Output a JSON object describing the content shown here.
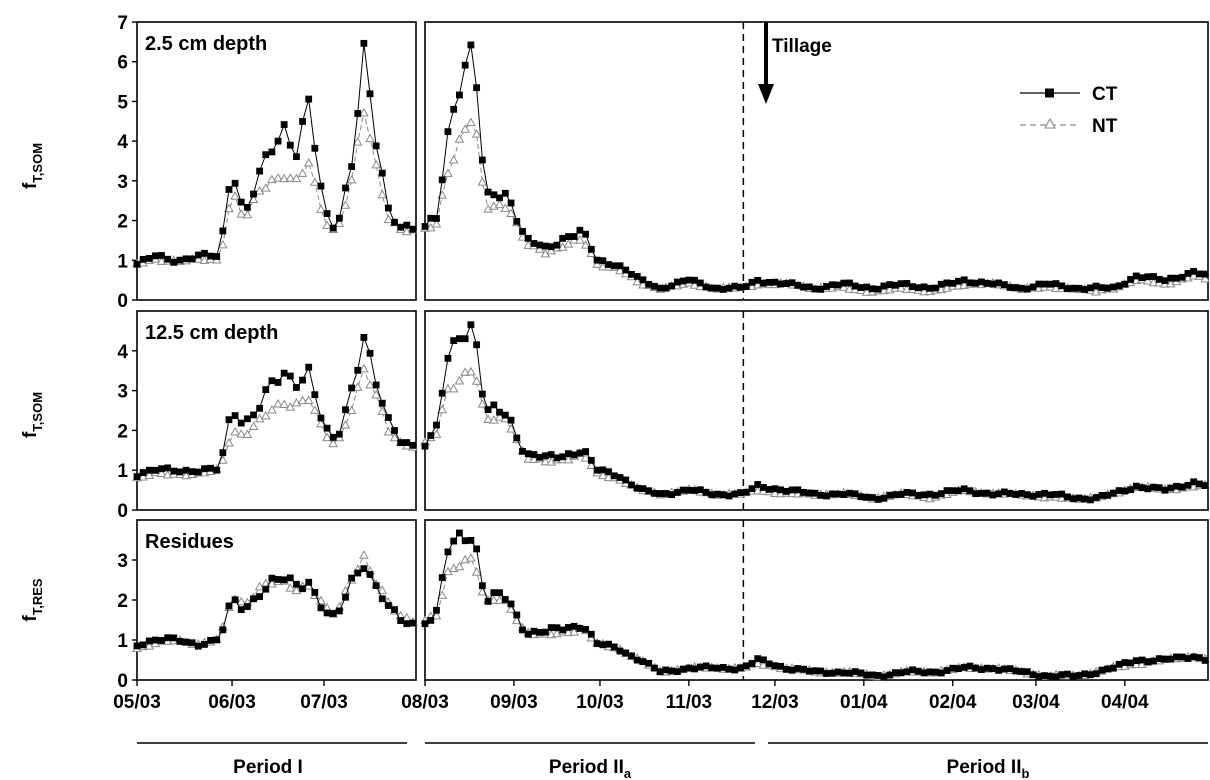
{
  "figure": {
    "ylabels": [
      {
        "main": "f",
        "sub": "T,SOM"
      },
      {
        "main": "f",
        "sub": "T,SOM"
      },
      {
        "main": "f",
        "sub": "T,RES"
      }
    ],
    "x_ticks": [
      "05/03",
      "06/03",
      "07/03",
      "08/03",
      "09/03",
      "10/03",
      "11/03",
      "12/03",
      "01/04",
      "02/04",
      "03/04",
      "04/04"
    ],
    "periods": [
      {
        "main": "Period I",
        "sub": ""
      },
      {
        "main": "Period II",
        "sub": "a"
      },
      {
        "main": "Period II",
        "sub": "b"
      }
    ],
    "tillage_label": "Tillage",
    "tillage_date": "2003-11-20",
    "legend": [
      {
        "name": "CT",
        "marker": "square-filled",
        "line": "solid",
        "color": "#000000"
      },
      {
        "name": "NT",
        "marker": "triangle-open",
        "line": "dashed",
        "color": "#8a8a8a"
      }
    ]
  },
  "chart_data": [
    {
      "type": "line",
      "title": "2.5 cm depth",
      "ylim": [
        0,
        7
      ],
      "yticks": [
        0,
        1,
        2,
        3,
        4,
        5,
        6,
        7
      ],
      "xlim": [
        "2003-05-01",
        "2004-04-30"
      ],
      "x_keypoints": [
        "2003-05-01",
        "2003-05-07",
        "2003-05-14",
        "2003-05-21",
        "2003-05-28",
        "2003-06-01",
        "2003-06-05",
        "2003-06-10",
        "2003-06-14",
        "2003-06-18",
        "2003-06-22",
        "2003-06-26",
        "2003-07-01",
        "2003-07-05",
        "2003-07-10",
        "2003-07-14",
        "2003-07-18",
        "2003-07-22",
        "2003-07-26",
        "2003-07-31",
        "2003-08-05",
        "2003-08-09",
        "2003-08-14",
        "2003-08-18",
        "2003-08-22",
        "2003-08-26",
        "2003-08-30",
        "2003-09-05",
        "2003-09-12",
        "2003-09-19",
        "2003-09-25",
        "2003-09-30",
        "2003-10-07",
        "2003-10-15",
        "2003-10-22",
        "2003-11-01",
        "2003-11-10",
        "2003-11-20",
        "2003-11-25",
        "2003-12-05",
        "2003-12-15",
        "2003-12-25",
        "2004-01-05",
        "2004-01-15",
        "2004-01-25",
        "2004-02-05",
        "2004-02-15",
        "2004-02-25",
        "2004-03-05",
        "2004-03-15",
        "2004-03-22",
        "2004-03-28",
        "2004-04-05",
        "2004-04-15",
        "2004-04-25",
        "2004-04-30"
      ],
      "series": [
        {
          "name": "CT",
          "values": [
            0.9,
            1.1,
            1.0,
            1.1,
            1.1,
            3.5,
            2.1,
            3.1,
            3.8,
            4.4,
            3.8,
            4.9,
            2.2,
            1.8,
            3.5,
            6.1,
            3.9,
            2.3,
            1.9,
            1.8,
            2.0,
            4.2,
            5.9,
            6.3,
            2.5,
            2.7,
            2.7,
            1.5,
            1.3,
            1.6,
            1.7,
            1.0,
            0.9,
            0.5,
            0.3,
            0.5,
            0.3,
            0.3,
            0.5,
            0.4,
            0.3,
            0.4,
            0.3,
            0.4,
            0.3,
            0.5,
            0.4,
            0.3,
            0.4,
            0.3,
            0.3,
            0.3,
            0.6,
            0.5,
            0.7,
            0.6
          ]
        },
        {
          "name": "NT",
          "values": [
            0.9,
            1.0,
            1.0,
            1.0,
            1.0,
            2.8,
            2.0,
            2.7,
            3.0,
            3.2,
            3.0,
            3.4,
            2.0,
            1.7,
            3.0,
            4.7,
            3.3,
            2.1,
            1.8,
            1.7,
            1.9,
            3.3,
            4.2,
            4.6,
            2.3,
            2.4,
            2.4,
            1.4,
            1.2,
            1.4,
            1.5,
            0.9,
            0.8,
            0.4,
            0.3,
            0.4,
            0.3,
            0.3,
            0.4,
            0.4,
            0.3,
            0.3,
            0.2,
            0.3,
            0.2,
            0.4,
            0.4,
            0.3,
            0.3,
            0.3,
            0.2,
            0.3,
            0.5,
            0.4,
            0.6,
            0.5
          ]
        }
      ]
    },
    {
      "type": "line",
      "title": "12.5 cm depth",
      "ylim": [
        0,
        5
      ],
      "yticks": [
        0,
        1,
        2,
        3,
        4
      ],
      "xlim": [
        "2003-05-01",
        "2004-04-30"
      ],
      "x_keypoints": [
        "2003-05-01",
        "2003-05-07",
        "2003-05-14",
        "2003-05-21",
        "2003-05-28",
        "2003-06-01",
        "2003-06-05",
        "2003-06-10",
        "2003-06-14",
        "2003-06-18",
        "2003-06-22",
        "2003-06-26",
        "2003-07-01",
        "2003-07-05",
        "2003-07-10",
        "2003-07-14",
        "2003-07-18",
        "2003-07-22",
        "2003-07-26",
        "2003-07-31",
        "2003-08-05",
        "2003-08-09",
        "2003-08-14",
        "2003-08-18",
        "2003-08-22",
        "2003-08-26",
        "2003-08-30",
        "2003-09-05",
        "2003-09-12",
        "2003-09-19",
        "2003-09-25",
        "2003-09-30",
        "2003-10-07",
        "2003-10-15",
        "2003-10-22",
        "2003-11-01",
        "2003-11-10",
        "2003-11-20",
        "2003-11-25",
        "2003-12-05",
        "2003-12-15",
        "2003-12-25",
        "2004-01-05",
        "2004-01-15",
        "2004-01-25",
        "2004-02-05",
        "2004-02-15",
        "2004-02-25",
        "2004-03-05",
        "2004-03-15",
        "2004-03-22",
        "2004-03-28",
        "2004-04-05",
        "2004-04-15",
        "2004-04-25",
        "2004-04-30"
      ],
      "series": [
        {
          "name": "CT",
          "values": [
            0.9,
            1.0,
            1.0,
            1.0,
            1.0,
            2.6,
            2.2,
            2.6,
            3.1,
            3.4,
            3.3,
            3.5,
            2.0,
            1.7,
            3.1,
            4.4,
            3.1,
            2.2,
            1.8,
            1.6,
            2.0,
            3.8,
            4.6,
            4.7,
            2.4,
            2.5,
            2.4,
            1.4,
            1.3,
            1.4,
            1.5,
            1.0,
            0.9,
            0.5,
            0.4,
            0.5,
            0.4,
            0.4,
            0.6,
            0.5,
            0.4,
            0.4,
            0.3,
            0.4,
            0.4,
            0.5,
            0.4,
            0.4,
            0.4,
            0.3,
            0.3,
            0.4,
            0.6,
            0.5,
            0.7,
            0.6
          ]
        },
        {
          "name": "NT",
          "values": [
            0.8,
            0.9,
            0.9,
            0.9,
            1.0,
            2.0,
            1.9,
            2.2,
            2.5,
            2.7,
            2.7,
            2.8,
            1.9,
            1.6,
            2.6,
            3.5,
            2.8,
            2.0,
            1.7,
            1.6,
            1.9,
            3.0,
            3.4,
            3.6,
            2.2,
            2.3,
            2.3,
            1.3,
            1.2,
            1.3,
            1.4,
            0.9,
            0.8,
            0.5,
            0.4,
            0.5,
            0.4,
            0.4,
            0.5,
            0.4,
            0.4,
            0.4,
            0.3,
            0.4,
            0.3,
            0.5,
            0.4,
            0.4,
            0.3,
            0.3,
            0.3,
            0.4,
            0.6,
            0.5,
            0.6,
            0.6
          ]
        }
      ]
    },
    {
      "type": "line",
      "title": "Residues",
      "ylim": [
        0,
        4
      ],
      "yticks": [
        0,
        1,
        2,
        3
      ],
      "xlim": [
        "2003-05-01",
        "2004-04-30"
      ],
      "x_keypoints": [
        "2003-05-01",
        "2003-05-07",
        "2003-05-14",
        "2003-05-21",
        "2003-05-28",
        "2003-06-01",
        "2003-06-05",
        "2003-06-10",
        "2003-06-14",
        "2003-06-18",
        "2003-06-22",
        "2003-06-26",
        "2003-07-01",
        "2003-07-05",
        "2003-07-10",
        "2003-07-14",
        "2003-07-18",
        "2003-07-22",
        "2003-07-26",
        "2003-07-31",
        "2003-08-05",
        "2003-08-09",
        "2003-08-14",
        "2003-08-18",
        "2003-08-22",
        "2003-08-26",
        "2003-08-30",
        "2003-09-05",
        "2003-09-12",
        "2003-09-19",
        "2003-09-25",
        "2003-09-30",
        "2003-10-07",
        "2003-10-15",
        "2003-10-22",
        "2003-11-01",
        "2003-11-10",
        "2003-11-20",
        "2003-11-25",
        "2003-12-05",
        "2003-12-15",
        "2003-12-25",
        "2004-01-05",
        "2004-01-15",
        "2004-01-25",
        "2004-02-05",
        "2004-02-15",
        "2004-02-25",
        "2004-03-05",
        "2004-03-15",
        "2004-03-22",
        "2004-03-28",
        "2004-04-05",
        "2004-04-15",
        "2004-04-25",
        "2004-04-30"
      ],
      "series": [
        {
          "name": "CT",
          "values": [
            0.9,
            1.0,
            1.0,
            0.9,
            1.0,
            2.0,
            1.8,
            2.2,
            2.4,
            2.5,
            2.4,
            2.5,
            1.7,
            1.5,
            2.5,
            3.0,
            2.3,
            1.8,
            1.5,
            1.4,
            1.7,
            3.2,
            3.6,
            3.7,
            2.0,
            2.1,
            2.0,
            1.2,
            1.2,
            1.3,
            1.4,
            0.9,
            0.8,
            0.5,
            0.2,
            0.3,
            0.3,
            0.3,
            0.5,
            0.3,
            0.2,
            0.2,
            0.1,
            0.2,
            0.2,
            0.3,
            0.3,
            0.2,
            0.1,
            0.1,
            0.2,
            0.3,
            0.5,
            0.5,
            0.6,
            0.5
          ]
        },
        {
          "name": "NT",
          "values": [
            0.8,
            0.9,
            1.0,
            0.9,
            1.0,
            2.1,
            1.9,
            2.3,
            2.4,
            2.4,
            2.3,
            2.4,
            1.8,
            1.6,
            2.6,
            3.1,
            2.4,
            1.9,
            1.6,
            1.5,
            1.6,
            2.6,
            3.0,
            3.1,
            1.9,
            2.0,
            1.9,
            1.2,
            1.1,
            1.2,
            1.3,
            0.9,
            0.8,
            0.5,
            0.2,
            0.3,
            0.3,
            0.3,
            0.4,
            0.3,
            0.2,
            0.2,
            0.1,
            0.2,
            0.2,
            0.3,
            0.3,
            0.2,
            0.1,
            0.1,
            0.2,
            0.3,
            0.4,
            0.5,
            0.6,
            0.5
          ]
        }
      ]
    }
  ]
}
